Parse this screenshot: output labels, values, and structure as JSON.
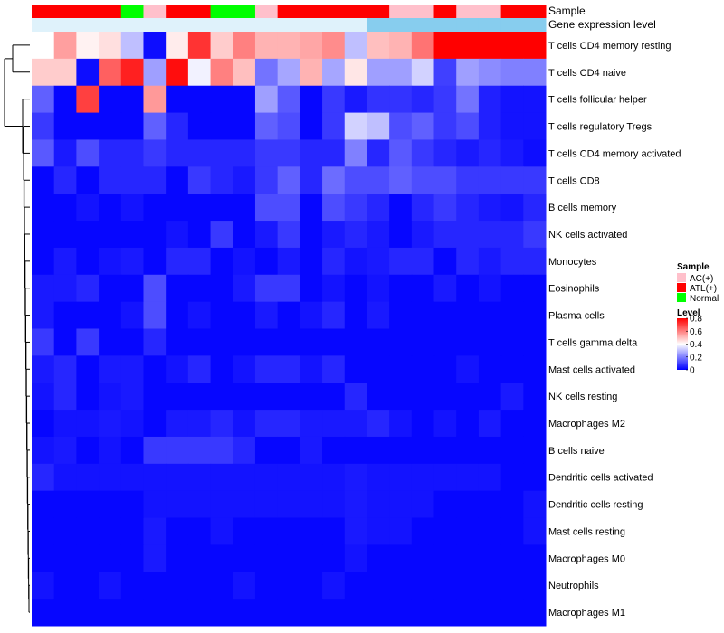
{
  "chart_data": {
    "type": "heatmap",
    "title": "",
    "annotations": {
      "sample": {
        "label": "Sample",
        "values": [
          "ATL(+)",
          "ATL(+)",
          "ATL(+)",
          "ATL(+)",
          "Normal",
          "AC(+)",
          "ATL(+)",
          "ATL(+)",
          "Normal",
          "Normal",
          "AC(+)",
          "ATL(+)",
          "ATL(+)",
          "ATL(+)",
          "ATL(+)",
          "ATL(+)",
          "AC(+)",
          "AC(+)",
          "ATL(+)",
          "AC(+)",
          "AC(+)",
          "ATL(+)",
          "ATL(+)"
        ]
      },
      "gene_expression": {
        "label": "Gene expression level",
        "values": [
          "low",
          "low",
          "low",
          "low",
          "low",
          "low",
          "low",
          "low",
          "low",
          "low",
          "low",
          "low",
          "low",
          "low",
          "low",
          "high",
          "high",
          "high",
          "high",
          "high",
          "high",
          "high",
          "high"
        ],
        "colors": {
          "low": "#dff2fb",
          "high": "#87cdee"
        }
      }
    },
    "rows": [
      "T cells CD4 memory resting",
      "T cells CD4 naive",
      "T cells follicular helper",
      "T cells regulatory  Tregs",
      "T cells CD4 memory activated",
      "T cells CD8",
      "B cells memory",
      "NK cells activated",
      "Monocytes",
      "Eosinophils",
      "Plasma cells",
      "T cells gamma delta",
      "Mast cells activated",
      "NK cells resting",
      "Macrophages M2",
      "B cells naive",
      "Dendritic cells activated",
      "Dendritic cells resting",
      "Mast cells resting",
      "Macrophages M0",
      "Neutrophils",
      "Macrophages M1"
    ],
    "values": [
      [
        0.4,
        0.55,
        0.42,
        0.45,
        0.3,
        0.02,
        0.43,
        0.72,
        0.48,
        0.6,
        0.52,
        0.52,
        0.54,
        0.58,
        0.3,
        0.5,
        0.52,
        0.62,
        0.8,
        0.8,
        0.8,
        0.8,
        0.8
      ],
      [
        0.48,
        0.48,
        0.02,
        0.65,
        0.75,
        0.25,
        0.78,
        0.38,
        0.6,
        0.5,
        0.18,
        0.26,
        0.52,
        0.26,
        0.44,
        0.25,
        0.25,
        0.33,
        0.1,
        0.25,
        0.22,
        0.2,
        0.2
      ],
      [
        0.15,
        0.01,
        0.7,
        0.01,
        0.01,
        0.56,
        0.01,
        0.01,
        0.01,
        0.01,
        0.25,
        0.14,
        0.01,
        0.09,
        0.04,
        0.08,
        0.08,
        0.06,
        0.09,
        0.18,
        0.05,
        0.03,
        0.03
      ],
      [
        0.09,
        0.01,
        0.01,
        0.01,
        0.01,
        0.15,
        0.06,
        0.01,
        0.01,
        0.01,
        0.15,
        0.12,
        0.01,
        0.09,
        0.33,
        0.3,
        0.12,
        0.15,
        0.09,
        0.12,
        0.05,
        0.03,
        0.03
      ],
      [
        0.14,
        0.04,
        0.12,
        0.06,
        0.06,
        0.09,
        0.06,
        0.06,
        0.06,
        0.06,
        0.09,
        0.09,
        0.06,
        0.06,
        0.2,
        0.06,
        0.14,
        0.09,
        0.06,
        0.04,
        0.06,
        0.04,
        0.02
      ],
      [
        0.01,
        0.06,
        0.01,
        0.06,
        0.06,
        0.06,
        0.01,
        0.09,
        0.06,
        0.04,
        0.09,
        0.15,
        0.06,
        0.17,
        0.12,
        0.12,
        0.15,
        0.12,
        0.12,
        0.09,
        0.09,
        0.09,
        0.09
      ],
      [
        0.01,
        0.01,
        0.03,
        0.01,
        0.03,
        0.01,
        0.01,
        0.01,
        0.01,
        0.01,
        0.12,
        0.12,
        0.01,
        0.12,
        0.09,
        0.06,
        0.01,
        0.06,
        0.09,
        0.06,
        0.04,
        0.03,
        0.06
      ],
      [
        0.01,
        0.01,
        0.01,
        0.01,
        0.01,
        0.01,
        0.03,
        0.01,
        0.09,
        0.01,
        0.04,
        0.09,
        0.01,
        0.04,
        0.06,
        0.04,
        0.01,
        0.04,
        0.06,
        0.06,
        0.06,
        0.06,
        0.09
      ],
      [
        0.01,
        0.04,
        0.01,
        0.03,
        0.04,
        0.01,
        0.06,
        0.06,
        0.01,
        0.03,
        0.01,
        0.04,
        0.01,
        0.06,
        0.03,
        0.04,
        0.06,
        0.06,
        0.01,
        0.06,
        0.04,
        0.06,
        0.06
      ],
      [
        0.04,
        0.04,
        0.06,
        0.01,
        0.01,
        0.12,
        0.01,
        0.01,
        0.01,
        0.04,
        0.09,
        0.09,
        0.01,
        0.03,
        0.01,
        0.03,
        0.01,
        0.01,
        0.04,
        0.01,
        0.03,
        0.01,
        0.01
      ],
      [
        0.04,
        0.01,
        0.01,
        0.01,
        0.03,
        0.12,
        0.01,
        0.03,
        0.01,
        0.01,
        0.04,
        0.01,
        0.03,
        0.06,
        0.01,
        0.04,
        0.01,
        0.01,
        0.01,
        0.01,
        0.01,
        0.01,
        0.01
      ],
      [
        0.09,
        0.01,
        0.09,
        0.01,
        0.01,
        0.06,
        0.01,
        0.01,
        0.01,
        0.01,
        0.01,
        0.01,
        0.01,
        0.01,
        0.01,
        0.01,
        0.01,
        0.01,
        0.01,
        0.01,
        0.01,
        0.01,
        0.01
      ],
      [
        0.04,
        0.06,
        0.01,
        0.04,
        0.04,
        0.01,
        0.03,
        0.06,
        0.01,
        0.03,
        0.06,
        0.06,
        0.03,
        0.06,
        0.01,
        0.01,
        0.01,
        0.01,
        0.01,
        0.03,
        0.01,
        0.01,
        0.01
      ],
      [
        0.03,
        0.06,
        0.01,
        0.03,
        0.04,
        0.01,
        0.01,
        0.01,
        0.01,
        0.01,
        0.01,
        0.01,
        0.01,
        0.01,
        0.06,
        0.01,
        0.01,
        0.01,
        0.01,
        0.01,
        0.01,
        0.04,
        0.01
      ],
      [
        0.01,
        0.03,
        0.03,
        0.04,
        0.03,
        0.01,
        0.04,
        0.04,
        0.06,
        0.03,
        0.06,
        0.06,
        0.04,
        0.04,
        0.04,
        0.06,
        0.03,
        0.01,
        0.03,
        0.01,
        0.04,
        0.01,
        0.01
      ],
      [
        0.03,
        0.04,
        0.01,
        0.03,
        0.01,
        0.09,
        0.09,
        0.09,
        0.09,
        0.06,
        0.01,
        0.01,
        0.04,
        0.01,
        0.01,
        0.01,
        0.01,
        0.01,
        0.01,
        0.01,
        0.01,
        0.01,
        0.01
      ],
      [
        0.06,
        0.03,
        0.03,
        0.03,
        0.03,
        0.03,
        0.03,
        0.03,
        0.03,
        0.03,
        0.03,
        0.03,
        0.03,
        0.03,
        0.04,
        0.03,
        0.03,
        0.03,
        0.03,
        0.03,
        0.03,
        0.01,
        0.01
      ],
      [
        0.01,
        0.01,
        0.01,
        0.01,
        0.01,
        0.03,
        0.03,
        0.03,
        0.03,
        0.03,
        0.03,
        0.03,
        0.03,
        0.03,
        0.04,
        0.03,
        0.03,
        0.03,
        0.01,
        0.01,
        0.01,
        0.01,
        0.03
      ],
      [
        0.01,
        0.01,
        0.01,
        0.01,
        0.01,
        0.04,
        0.01,
        0.01,
        0.03,
        0.01,
        0.01,
        0.01,
        0.01,
        0.01,
        0.04,
        0.03,
        0.03,
        0.01,
        0.01,
        0.01,
        0.01,
        0.01,
        0.03
      ],
      [
        0.01,
        0.01,
        0.01,
        0.01,
        0.01,
        0.04,
        0.01,
        0.01,
        0.01,
        0.01,
        0.01,
        0.01,
        0.01,
        0.01,
        0.03,
        0.01,
        0.01,
        0.01,
        0.01,
        0.01,
        0.01,
        0.01,
        0.01
      ],
      [
        0.03,
        0.01,
        0.01,
        0.03,
        0.01,
        0.01,
        0.01,
        0.01,
        0.01,
        0.03,
        0.01,
        0.01,
        0.01,
        0.03,
        0.01,
        0.01,
        0.01,
        0.01,
        0.01,
        0.01,
        0.01,
        0.01,
        0.01
      ],
      [
        0.01,
        0.01,
        0.01,
        0.01,
        0.01,
        0.01,
        0.01,
        0.01,
        0.01,
        0.01,
        0.01,
        0.01,
        0.01,
        0.01,
        0.01,
        0.01,
        0.01,
        0.01,
        0.01,
        0.01,
        0.01,
        0.01,
        0.01
      ]
    ],
    "color_scale": {
      "stops": [
        {
          "value": 0,
          "color": "#0000ff"
        },
        {
          "value": 0.4,
          "color": "#ffffff"
        },
        {
          "value": 0.8,
          "color": "#ff0000"
        }
      ],
      "range": [
        0,
        0.8
      ]
    },
    "legend": {
      "placement": "right",
      "sample": {
        "title": "Sample",
        "entries": [
          {
            "label": "AC(+)",
            "color": "#ffc0cb"
          },
          {
            "label": "ATL(+)",
            "color": "#ff0000"
          },
          {
            "label": "Normal",
            "color": "#00ff00"
          }
        ]
      },
      "level": {
        "title": "Level",
        "ticks": [
          "0.8",
          "0.6",
          "0.4",
          "0.2",
          "0"
        ],
        "tick_values": [
          0.8,
          0.6,
          0.4,
          0.2,
          0
        ]
      }
    }
  }
}
